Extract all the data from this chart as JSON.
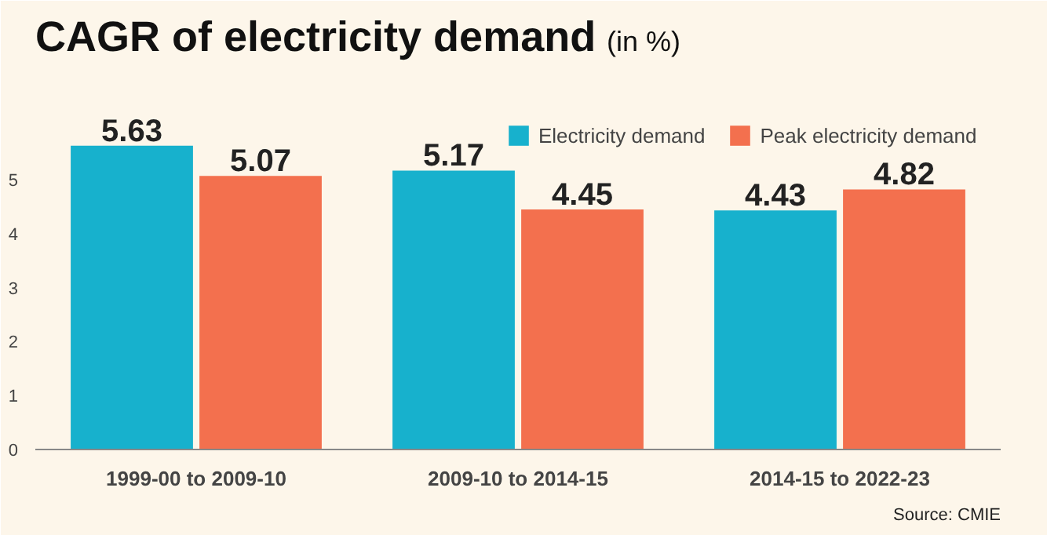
{
  "chart_data": {
    "type": "bar",
    "title": "CAGR of electricity demand",
    "subtitle": "(in %)",
    "categories": [
      "1999-00 to 2009-10",
      "2009-10 to 2014-15",
      "2014-15 to 2022-23"
    ],
    "series": [
      {
        "name": "Electricity demand",
        "color": "#17b1cd",
        "values": [
          5.63,
          5.17,
          4.43
        ]
      },
      {
        "name": "Peak electricity demand",
        "color": "#f3704e",
        "values": [
          5.07,
          4.45,
          4.82
        ]
      }
    ],
    "ylim": [
      0,
      8.2
    ],
    "yticks": [
      0,
      1,
      2,
      3,
      4,
      5
    ],
    "grid": false,
    "legend": "top right",
    "data_labels": true,
    "annotations": [
      "Source: CMIE"
    ]
  }
}
